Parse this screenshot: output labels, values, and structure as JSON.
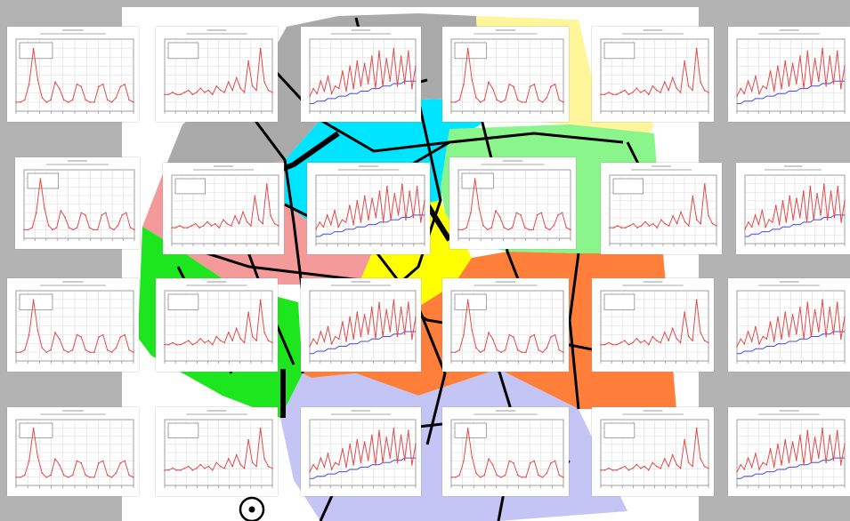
{
  "colors": {
    "background": "#b3b3b3",
    "map_sheet": "#ffffff",
    "district_gray": "#aaaaaa",
    "district_yellow": "#ffff00",
    "district_pale_yellow": "#fff59a",
    "district_cyan": "#00e5ff",
    "district_light_green": "#8af58a",
    "district_pink": "#f59a9a",
    "district_green": "#1ee61e",
    "district_orange": "#ff7f3a",
    "district_lavender": "#c4c4f5",
    "streets": "#000000",
    "series_main": "#e34a4a",
    "series_secondary": "#4a4ae3",
    "gridlines": "#d9d9d9"
  },
  "map": {
    "compass_symbol": "(•)"
  },
  "chart_data": [
    {
      "type": "line",
      "variant": "A",
      "values": [
        4,
        4,
        5,
        12,
        28,
        14,
        6,
        4,
        5,
        13,
        10,
        5,
        4,
        5,
        12,
        11,
        5,
        4,
        4,
        11,
        12,
        5,
        4,
        6,
        11,
        12,
        5,
        4
      ]
    },
    {
      "type": "line",
      "variant": "B",
      "values": [
        8,
        8,
        9,
        8,
        8,
        9,
        10,
        8,
        9,
        11,
        9,
        10,
        8,
        12,
        10,
        9,
        14,
        10,
        16,
        11,
        9,
        24,
        12,
        10,
        30,
        14,
        10,
        9
      ]
    },
    {
      "type": "line",
      "variant": "C",
      "values": [
        6,
        9,
        7,
        12,
        8,
        14,
        7,
        10,
        9,
        16,
        8,
        18,
        9,
        20,
        10,
        19,
        11,
        22,
        9,
        24,
        10,
        21,
        12,
        25,
        10,
        22,
        11,
        24,
        9,
        18
      ],
      "secondary": [
        3,
        3,
        4,
        4,
        4,
        5,
        5,
        5,
        6,
        6,
        6,
        7,
        7,
        7,
        8,
        8,
        8,
        9,
        9,
        9,
        10,
        10,
        10,
        11,
        11,
        11,
        12,
        12,
        12,
        12
      ]
    }
  ]
}
